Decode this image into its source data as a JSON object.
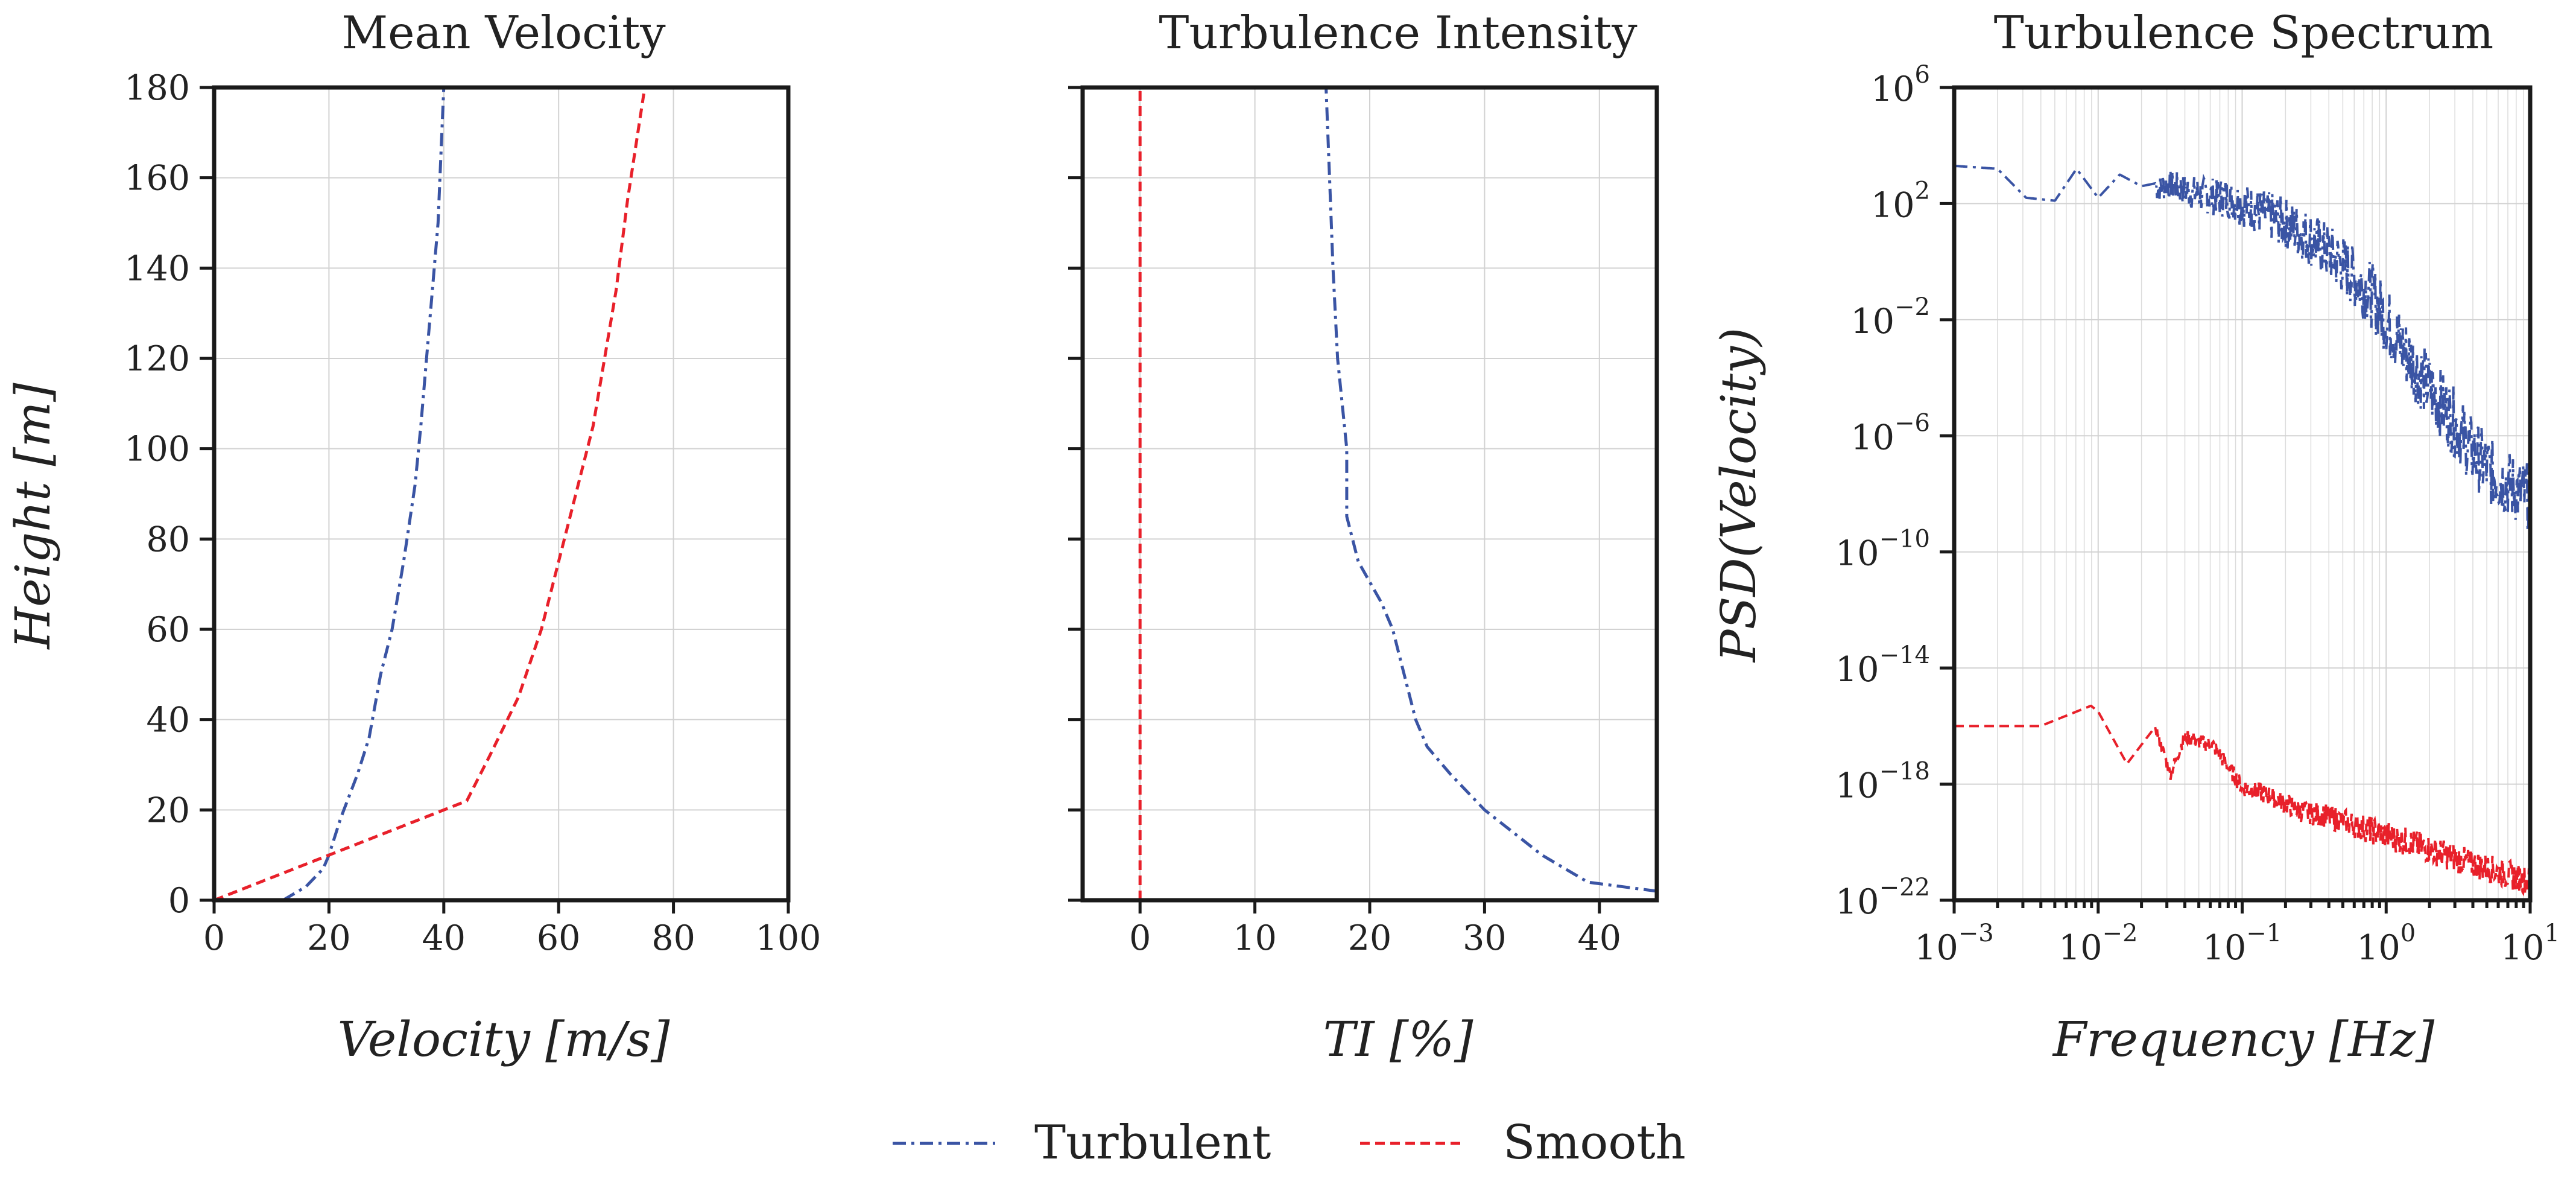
{
  "chart_data": [
    {
      "type": "line",
      "title": "Mean Velocity",
      "xlabel": "Velocity [m/s]",
      "ylabel": "Height [m]",
      "xlim": [
        0,
        100
      ],
      "ylim": [
        0,
        180
      ],
      "xticks": [
        "0",
        "20",
        "40",
        "60",
        "80",
        "100"
      ],
      "yticks": [
        "0",
        "20",
        "40",
        "60",
        "80",
        "100",
        "120",
        "140",
        "160",
        "180"
      ],
      "grid": true,
      "series": [
        {
          "name": "Turbulent",
          "color": "#3a54a4",
          "dash": "dashdot",
          "x": [
            12,
            16,
            19,
            20,
            22,
            25,
            27,
            29,
            31,
            33,
            35,
            36,
            37,
            38,
            39,
            39.5,
            40
          ],
          "y": [
            0,
            3,
            7,
            10,
            18,
            28,
            36,
            50,
            60,
            75,
            92,
            105,
            120,
            135,
            150,
            165,
            180
          ]
        },
        {
          "name": "Smooth",
          "color": "#e8202a",
          "dash": "dashed",
          "x": [
            0,
            20,
            44,
            48,
            53,
            57,
            60,
            63,
            66,
            68,
            70,
            72,
            75
          ],
          "y": [
            0,
            10,
            22,
            32,
            45,
            60,
            75,
            90,
            105,
            120,
            135,
            155,
            180
          ]
        }
      ]
    },
    {
      "type": "line",
      "title": "Turbulence Intensity",
      "xlabel": "TI [%]",
      "ylabel": "",
      "xlim": [
        -5,
        45
      ],
      "ylim": [
        0,
        180
      ],
      "xticks": [
        "0",
        "10",
        "20",
        "30",
        "40"
      ],
      "grid": true,
      "series": [
        {
          "name": "Turbulent",
          "color": "#3a54a4",
          "dash": "dashdot",
          "x": [
            45,
            39,
            35,
            30,
            27,
            25,
            24,
            23,
            22,
            21,
            19,
            18,
            18,
            18,
            17.8,
            17.6,
            17.2,
            17,
            16.8,
            16.5,
            16.2
          ],
          "y": [
            2,
            4,
            10,
            20,
            28,
            34,
            40,
            50,
            60,
            66,
            75,
            85,
            95,
            100,
            105,
            110,
            120,
            130,
            140,
            160,
            180
          ]
        },
        {
          "name": "Smooth",
          "color": "#e8202a",
          "dash": "dashed",
          "x": [
            0,
            0
          ],
          "y": [
            0,
            180
          ]
        }
      ]
    },
    {
      "type": "line",
      "title": "Turbulence Spectrum",
      "xlabel": "Frequency [Hz]",
      "ylabel": "PSD(Velocity)",
      "xscale": "log",
      "yscale": "log",
      "xlim_exp": [
        -3,
        1
      ],
      "ylim_exp": [
        -22,
        6
      ],
      "xticks_exp": [
        -3,
        -2,
        -1,
        0,
        1
      ],
      "yticks_exp": [
        -22,
        -18,
        -14,
        -10,
        -6,
        -2,
        2,
        6
      ],
      "tick_base": "10",
      "grid": true,
      "series": [
        {
          "name": "Turbulent",
          "color": "#3a54a4",
          "dash": "dashdot",
          "log_freq": [
            -3,
            -2.7,
            -2.5,
            -2.3,
            -2.15,
            -2,
            -1.85,
            -1.7,
            -1.5,
            -1.3,
            -1.1,
            -0.9,
            -0.7,
            -0.5,
            -0.3,
            -0.1,
            0.1,
            0.3,
            0.45,
            0.6,
            0.75,
            0.9,
            1
          ],
          "log_psd": [
            3.3,
            3.2,
            2.2,
            2.1,
            3.2,
            2.2,
            3.0,
            2.6,
            2.8,
            2.5,
            2.4,
            2.0,
            1.6,
            1.0,
            0.2,
            -0.8,
            -2.5,
            -4.0,
            -5.0,
            -6.2,
            -7.0,
            -7.5,
            -7.8
          ],
          "noise_band_log": 1.2
        },
        {
          "name": "Smooth",
          "color": "#e8202a",
          "dash": "dashed",
          "log_freq": [
            -3,
            -2.7,
            -2.4,
            -2.2,
            -2.05,
            -2,
            -1.8,
            -1.6,
            -1.5,
            -1.4,
            -1.2,
            -1.0,
            -0.8,
            -0.6,
            -0.4,
            -0.2,
            0,
            0.3,
            0.6,
            1
          ],
          "log_psd": [
            -16,
            -16,
            -16,
            -15.6,
            -15.3,
            -15.5,
            -17.3,
            -16,
            -17.6,
            -16.3,
            -16.6,
            -18.0,
            -18.3,
            -18.8,
            -19.0,
            -19.3,
            -19.6,
            -20.1,
            -20.6,
            -21.2
          ],
          "noise_band_log": 0.5
        }
      ]
    }
  ],
  "legend": {
    "placement": "bottom-center",
    "entries": [
      {
        "label": "Turbulent",
        "color": "#3a54a4",
        "dash": "dashdot"
      },
      {
        "label": "Smooth",
        "color": "#e8202a",
        "dash": "dashed"
      }
    ]
  }
}
